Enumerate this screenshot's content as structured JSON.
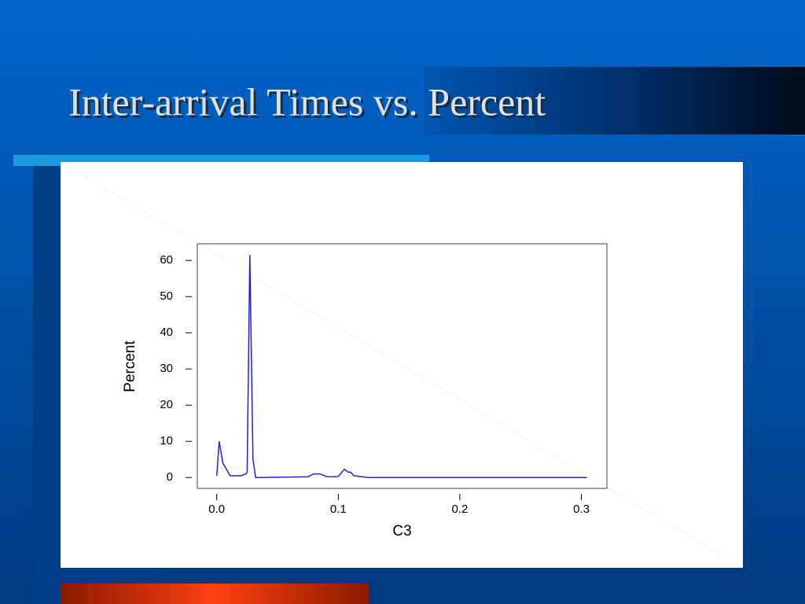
{
  "title": "Inter-arrival Times vs. Percent",
  "chart_data": {
    "type": "line",
    "xlabel": "C3",
    "ylabel": "Percent",
    "x": [
      0,
      0.002,
      0.005,
      0.011,
      0.02,
      0.024,
      0.025,
      0.0272,
      0.0298,
      0.032,
      0.075,
      0.0797,
      0.085,
      0.09,
      0.095,
      0.1,
      0.105,
      0.108,
      0.11,
      0.113,
      0.12,
      0.125,
      0.3046
    ],
    "series": [
      {
        "name": "Percent",
        "color": "#2222cc",
        "values": [
          0.5,
          10,
          4,
          0.5,
          0.5,
          1,
          1.5,
          61.5,
          5,
          0,
          0.2,
          1,
          1,
          0.3,
          0.2,
          0.3,
          2.3,
          1.5,
          1.5,
          0.5,
          0.2,
          0,
          0
        ]
      }
    ],
    "xlim": [
      -0.016,
      0.321
    ],
    "ylim": [
      -3,
      64.6
    ],
    "xticks": [
      {
        "value": 0,
        "label": "0.0"
      },
      0.1,
      0.2,
      0.3
    ],
    "yticks": [
      0,
      10,
      20,
      30,
      40,
      50,
      60
    ]
  }
}
